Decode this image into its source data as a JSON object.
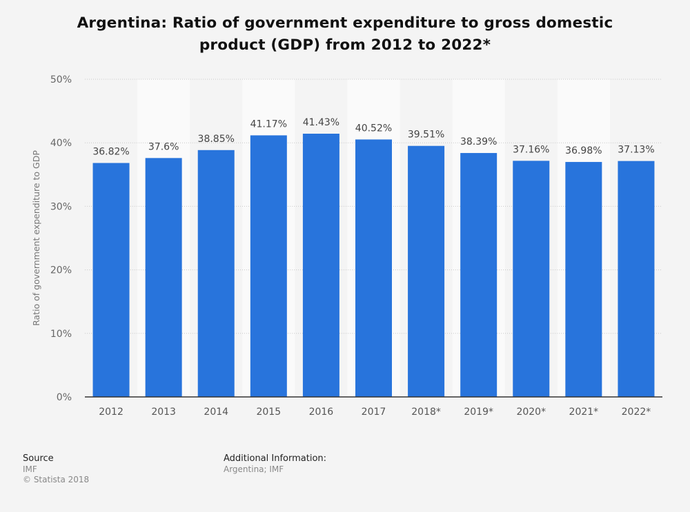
{
  "title": "Argentina: Ratio of government expenditure to gross domestic product (GDP) from 2012 to 2022*",
  "chart_data": {
    "type": "bar",
    "title": "Argentina: Ratio of government expenditure to gross domestic product (GDP) from 2012 to 2022*",
    "xlabel": "",
    "ylabel": "Ratio of government expenditure to GDP",
    "categories": [
      "2012",
      "2013",
      "2014",
      "2015",
      "2016",
      "2017",
      "2018*",
      "2019*",
      "2020*",
      "2021*",
      "2022*"
    ],
    "values": [
      36.82,
      37.6,
      38.85,
      41.17,
      41.43,
      40.52,
      39.51,
      38.39,
      37.16,
      36.98,
      37.13
    ],
    "data_labels": [
      "36.82%",
      "37.6%",
      "38.85%",
      "41.17%",
      "41.43%",
      "40.52%",
      "39.51%",
      "38.39%",
      "37.16%",
      "36.98%",
      "37.13%"
    ],
    "ylim": [
      0,
      50
    ],
    "yticks": [
      0,
      10,
      20,
      30,
      40,
      50
    ],
    "ytick_labels": [
      "0%",
      "10%",
      "20%",
      "30%",
      "40%",
      "50%"
    ],
    "grid": true,
    "legend": "none",
    "bar_color": "#2874dc"
  },
  "footer": {
    "source_heading": "Source",
    "source_lines": [
      "IMF",
      "© Statista 2018"
    ],
    "info_heading": "Additional Information:",
    "info_lines": [
      "Argentina; IMF"
    ]
  }
}
